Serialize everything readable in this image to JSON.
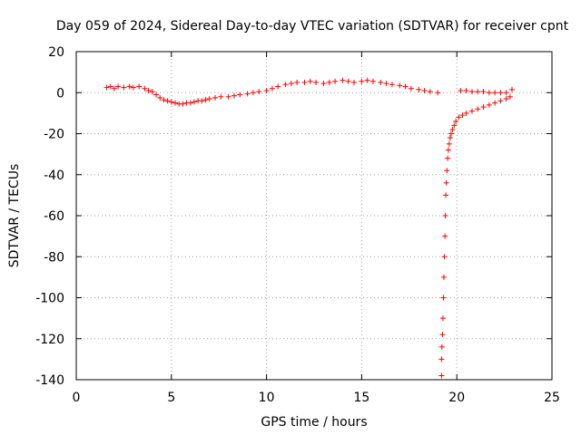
{
  "chart_data": {
    "type": "scatter",
    "title": "Day 059 of 2024, Sidereal Day-to-day VTEC variation (SDTVAR) for receiver cpnt",
    "xlabel": "GPS time / hours",
    "ylabel": "SDTVAR / TECUs",
    "xlim": [
      0,
      25
    ],
    "ylim": [
      -140,
      20
    ],
    "xticks": [
      0,
      5,
      10,
      15,
      20,
      25
    ],
    "yticks": [
      -140,
      -120,
      -100,
      -80,
      -60,
      -40,
      -20,
      0,
      20
    ],
    "xtick_labels": [
      "0",
      "5",
      "10",
      "15",
      "20",
      "25"
    ],
    "ytick_labels": [
      "-140",
      "-120",
      "-100",
      "-80",
      "-60",
      "-40",
      "-20",
      "0",
      "20"
    ],
    "grid": true,
    "marker": "+",
    "color": "#ff0000",
    "series": [
      {
        "name": "SDTVAR",
        "x": [
          1.6,
          1.8,
          2.0,
          2.2,
          2.5,
          2.8,
          3.0,
          3.3,
          3.6,
          3.8,
          4.0,
          4.2,
          4.4,
          4.6,
          4.8,
          5.0,
          5.2,
          5.4,
          5.6,
          5.8,
          6.0,
          6.2,
          6.4,
          6.6,
          6.8,
          7.0,
          7.3,
          7.6,
          8.0,
          8.3,
          8.6,
          9.0,
          9.3,
          9.6,
          10.0,
          10.3,
          10.6,
          11.0,
          11.3,
          11.6,
          12.0,
          12.3,
          12.6,
          13.0,
          13.3,
          13.6,
          14.0,
          14.3,
          14.6,
          15.0,
          15.3,
          15.6,
          16.0,
          16.3,
          16.6,
          17.0,
          17.3,
          17.6,
          18.0,
          18.3,
          18.6,
          19.0,
          19.2,
          19.2,
          19.22,
          19.25,
          19.27,
          19.3,
          19.32,
          19.35,
          19.38,
          19.4,
          19.42,
          19.45,
          19.48,
          19.52,
          19.56,
          19.6,
          19.65,
          19.7,
          19.78,
          19.86,
          19.95,
          20.1,
          20.3,
          20.5,
          20.8,
          21.1,
          21.4,
          21.7,
          22.0,
          22.3,
          22.6,
          22.8,
          20.2,
          20.5,
          20.8,
          21.1,
          21.4,
          21.7,
          22.0,
          22.3,
          22.6,
          22.9
        ],
        "y": [
          2.5,
          3.0,
          2.0,
          3.0,
          2.5,
          3.0,
          2.5,
          3.0,
          2.0,
          1.0,
          0.5,
          -1.0,
          -2.5,
          -3.5,
          -4.0,
          -4.5,
          -5.0,
          -5.5,
          -5.5,
          -5.0,
          -5.0,
          -4.5,
          -4.0,
          -4.0,
          -3.5,
          -3.0,
          -2.5,
          -2.0,
          -2.0,
          -1.5,
          -1.0,
          -0.5,
          0.0,
          0.5,
          1.0,
          2.0,
          3.0,
          4.0,
          4.5,
          5.0,
          5.0,
          5.5,
          5.0,
          4.5,
          5.0,
          5.5,
          6.0,
          5.5,
          5.0,
          5.5,
          6.0,
          5.5,
          5.0,
          4.5,
          4.0,
          3.5,
          3.0,
          2.0,
          1.5,
          1.0,
          0.5,
          0.0,
          -138,
          -130,
          -124,
          -118,
          -110,
          -100,
          -90,
          -80,
          -70,
          -60,
          -50,
          -44,
          -38,
          -32,
          -28,
          -25,
          -22,
          -20,
          -18,
          -16,
          -14,
          -12,
          -11,
          -10,
          -9,
          -8,
          -7,
          -6,
          -5,
          -4,
          -3,
          -2,
          1.0,
          1.0,
          0.5,
          0.5,
          0.5,
          0.0,
          0.0,
          0.0,
          0.0,
          1.5
        ]
      }
    ]
  }
}
